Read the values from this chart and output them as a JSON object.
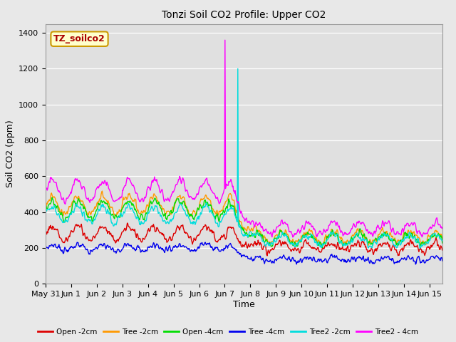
{
  "title": "Tonzi Soil CO2 Profile: Upper CO2",
  "ylabel": "Soil CO2 (ppm)",
  "xlabel": "Time",
  "watermark": "TZ_soilco2",
  "ylim": [
    0,
    1450
  ],
  "yticks": [
    0,
    200,
    400,
    600,
    800,
    1000,
    1200,
    1400
  ],
  "x_tick_labels": [
    "May 31",
    "Jun 1",
    "Jun 2",
    "Jun 3",
    "Jun 4",
    "Jun 5",
    "Jun 6",
    "Jun 7",
    "Jun 8",
    "Jun 9",
    "Jun 10",
    "Jun 11",
    "Jun 12",
    "Jun 13",
    "Jun 14",
    "Jun 15"
  ],
  "series": [
    {
      "name": "Open -2cm",
      "color": "#dd0000",
      "lw": 1.0
    },
    {
      "name": "Tree -2cm",
      "color": "#ff9900",
      "lw": 1.0
    },
    {
      "name": "Open -4cm",
      "color": "#00dd00",
      "lw": 1.0
    },
    {
      "name": "Tree -4cm",
      "color": "#0000ee",
      "lw": 1.0
    },
    {
      "name": "Tree2 -2cm",
      "color": "#00dddd",
      "lw": 1.0
    },
    {
      "name": "Tree2 - 4cm",
      "color": "#ff00ff",
      "lw": 1.0
    }
  ],
  "bg_color": "#e8e8e8",
  "plot_bg_color": "#e0e0e0",
  "grid_color": "#ffffff",
  "watermark_bg": "#ffffcc",
  "watermark_border": "#cc9900",
  "spike_mag_day": 7.0,
  "spike_mag_val": 1360,
  "spike_cyan_day": 7.5,
  "spike_cyan_val": 1200,
  "n_per_day": 48
}
